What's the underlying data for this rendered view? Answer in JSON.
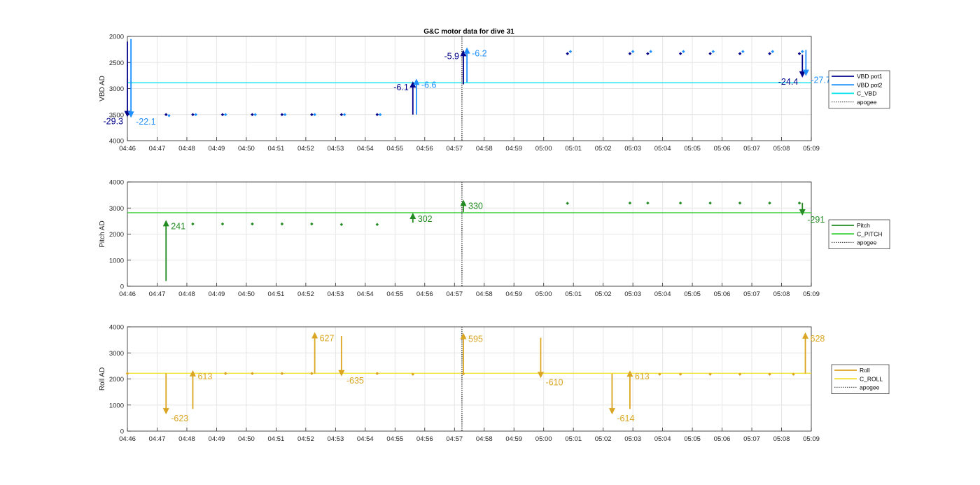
{
  "figure_title": "G&C motor data for dive 31",
  "time_ticks": [
    "04:46",
    "04:47",
    "04:48",
    "04:49",
    "04:50",
    "04:51",
    "04:52",
    "04:53",
    "04:54",
    "04:55",
    "04:56",
    "04:57",
    "04:58",
    "04:59",
    "05:00",
    "05:01",
    "05:02",
    "05:03",
    "05:04",
    "05:05",
    "05:06",
    "05:07",
    "05:08",
    "05:09"
  ],
  "colors": {
    "vbd_pot1": "#00008b",
    "vbd_pot2": "#1e90ff",
    "c_vbd": "#00e5ee",
    "pitch": "#228b22",
    "c_pitch": "#32cd32",
    "roll": "#daa520",
    "c_roll": "#f0e130",
    "apogee": "#555555",
    "grid": "#e6e6e6",
    "axis": "#262626"
  },
  "chart_data": [
    {
      "type": "line",
      "title": "G&C motor data for dive 31",
      "ylabel": "VBD AD",
      "ylim": [
        2000,
        4000
      ],
      "y_reversed": true,
      "yticks": [
        2000,
        2500,
        3000,
        3500,
        4000
      ],
      "xlim": [
        0,
        23
      ],
      "grid": true,
      "legend_position": "right",
      "legend": [
        {
          "label": "VBD pot1",
          "style": "solid",
          "color_key": "vbd_pot1"
        },
        {
          "label": "VBD pot2",
          "style": "solid",
          "color_key": "vbd_pot2"
        },
        {
          "label": "C_VBD",
          "style": "solid",
          "color_key": "c_vbd"
        },
        {
          "label": "apogee",
          "style": "dotted",
          "color_key": "apogee"
        }
      ],
      "reference_line": {
        "name": "C_VBD",
        "y": 2890,
        "color_key": "c_vbd"
      },
      "apogee_x": 11.25,
      "series": [
        {
          "name": "VBD pot1",
          "color_key": "vbd_pot1",
          "x": [
            1.3,
            2.2,
            3.2,
            4.2,
            5.2,
            6.2,
            7.2,
            8.4,
            14.8,
            16.9,
            17.5,
            18.6,
            19.6,
            20.6,
            21.6,
            22.6
          ],
          "y": [
            3500,
            3500,
            3500,
            3500,
            3500,
            3500,
            3500,
            3500,
            2330,
            2330,
            2330,
            2330,
            2330,
            2330,
            2330,
            2330
          ]
        },
        {
          "name": "VBD pot2",
          "color_key": "vbd_pot2",
          "x": [
            1.4,
            2.3,
            3.3,
            4.3,
            5.3,
            6.3,
            7.3,
            8.5,
            14.9,
            17.0,
            17.6,
            18.7,
            19.7,
            20.7,
            21.7,
            22.7
          ],
          "y": [
            3520,
            3500,
            3500,
            3500,
            3500,
            3500,
            3500,
            3500,
            2290,
            2290,
            2290,
            2290,
            2290,
            2290,
            2290,
            2290
          ]
        }
      ],
      "arrows": [
        {
          "x": 0.0,
          "y0": 2100,
          "y1": 3550,
          "label": "-29.3",
          "color_key": "vbd_pot1",
          "label_side": "left"
        },
        {
          "x": 0.12,
          "y0": 2050,
          "y1": 3560,
          "label": "-22.1",
          "color_key": "vbd_pot2",
          "label_side": "right"
        },
        {
          "x": 9.6,
          "y0": 3500,
          "y1": 2860,
          "label": "-6.1",
          "color_key": "vbd_pot1",
          "label_side": "left"
        },
        {
          "x": 9.72,
          "y0": 3500,
          "y1": 2810,
          "label": "-6.6",
          "color_key": "vbd_pot2",
          "label_side": "right"
        },
        {
          "x": 11.3,
          "y0": 2920,
          "y1": 2260,
          "label": "-5.9",
          "color_key": "vbd_pot1",
          "label_side": "left"
        },
        {
          "x": 11.42,
          "y0": 2880,
          "y1": 2210,
          "label": "-6.2",
          "color_key": "vbd_pot2",
          "label_side": "right"
        },
        {
          "x": 22.7,
          "y0": 2350,
          "y1": 2790,
          "label": "-24.4",
          "color_key": "vbd_pot1",
          "label_side": "left"
        },
        {
          "x": 22.82,
          "y0": 2260,
          "y1": 2760,
          "label": "-27.7",
          "color_key": "vbd_pot2",
          "label_side": "right"
        }
      ]
    },
    {
      "type": "line",
      "title": "",
      "ylabel": "Pitch AD",
      "ylim": [
        0,
        4000
      ],
      "y_reversed": false,
      "yticks": [
        0,
        1000,
        2000,
        3000,
        4000
      ],
      "xlim": [
        0,
        23
      ],
      "grid": true,
      "legend_position": "right",
      "legend": [
        {
          "label": "Pitch",
          "style": "solid",
          "color_key": "pitch"
        },
        {
          "label": "C_PITCH",
          "style": "solid",
          "color_key": "c_pitch"
        },
        {
          "label": "apogee",
          "style": "dotted",
          "color_key": "apogee"
        }
      ],
      "reference_line": {
        "name": "C_PITCH",
        "y": 2820,
        "color_key": "c_pitch"
      },
      "apogee_x": 11.25,
      "series": [
        {
          "name": "Pitch",
          "color_key": "pitch",
          "x": [
            2.2,
            3.2,
            4.2,
            5.2,
            6.2,
            7.2,
            8.4,
            14.8,
            16.9,
            17.5,
            18.6,
            19.6,
            20.6,
            21.6,
            22.6
          ],
          "y": [
            2390,
            2390,
            2390,
            2390,
            2390,
            2370,
            2370,
            3180,
            3190,
            3190,
            3190,
            3190,
            3190,
            3190,
            3190
          ]
        }
      ],
      "arrows": [
        {
          "x": 1.3,
          "y0": 200,
          "y1": 2540,
          "label": "241",
          "color_key": "pitch",
          "label_side": "right"
        },
        {
          "x": 9.6,
          "y0": 2440,
          "y1": 2820,
          "label": "302",
          "color_key": "pitch",
          "label_side": "right"
        },
        {
          "x": 11.3,
          "y0": 2850,
          "y1": 3320,
          "label": "330",
          "color_key": "pitch",
          "label_side": "right"
        },
        {
          "x": 22.7,
          "y0": 3200,
          "y1": 2710,
          "label": "-291",
          "color_key": "pitch",
          "label_side": "right"
        }
      ]
    },
    {
      "type": "line",
      "title": "",
      "ylabel": "Roll AD",
      "ylim": [
        0,
        4000
      ],
      "y_reversed": false,
      "yticks": [
        0,
        1000,
        2000,
        3000,
        4000
      ],
      "xlim": [
        0,
        23
      ],
      "grid": true,
      "legend_position": "right",
      "legend": [
        {
          "label": "Roll",
          "style": "solid",
          "color_key": "roll"
        },
        {
          "label": "C_ROLL",
          "style": "solid",
          "color_key": "c_roll"
        },
        {
          "label": "apogee",
          "style": "dotted",
          "color_key": "apogee"
        }
      ],
      "reference_line": {
        "name": "C_ROLL",
        "y": 2220,
        "color_key": "c_roll"
      },
      "apogee_x": 11.25,
      "series": [
        {
          "name": "Roll",
          "color_key": "roll",
          "x": [
            0.0,
            3.3,
            4.2,
            5.2,
            6.2,
            8.4,
            9.6,
            11.3,
            17.9,
            18.6,
            19.6,
            20.6,
            21.6,
            22.4
          ],
          "y": [
            2210,
            2210,
            2210,
            2210,
            2210,
            2210,
            2180,
            2200,
            2180,
            2180,
            2180,
            2180,
            2180,
            2180
          ]
        }
      ],
      "arrows": [
        {
          "x": 1.3,
          "y0": 2210,
          "y1": 640,
          "label": "-623",
          "color_key": "roll",
          "label_side": "right"
        },
        {
          "x": 2.2,
          "y0": 850,
          "y1": 2340,
          "label": "613",
          "color_key": "roll",
          "label_side": "right"
        },
        {
          "x": 6.3,
          "y0": 2210,
          "y1": 3800,
          "label": "627",
          "color_key": "roll",
          "label_side": "right"
        },
        {
          "x": 7.2,
          "y0": 3650,
          "y1": 2100,
          "label": "-635",
          "color_key": "roll",
          "label_side": "right"
        },
        {
          "x": 11.3,
          "y0": 2210,
          "y1": 3770,
          "label": "595",
          "color_key": "roll",
          "label_side": "right"
        },
        {
          "x": 13.9,
          "y0": 3580,
          "y1": 2030,
          "label": "-610",
          "color_key": "roll",
          "label_side": "right"
        },
        {
          "x": 16.3,
          "y0": 2200,
          "y1": 640,
          "label": "-614",
          "color_key": "roll",
          "label_side": "right"
        },
        {
          "x": 16.9,
          "y0": 850,
          "y1": 2330,
          "label": "613",
          "color_key": "roll",
          "label_side": "right"
        },
        {
          "x": 22.8,
          "y0": 2210,
          "y1": 3790,
          "label": "628",
          "color_key": "roll",
          "label_side": "right"
        }
      ]
    }
  ]
}
